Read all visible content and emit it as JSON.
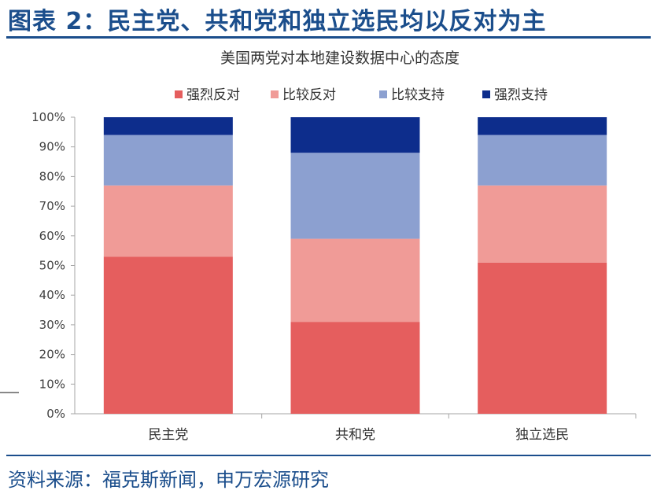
{
  "figure": {
    "heading": "图表 2：民主党、共和党和独立选民均以反对为主",
    "source": "资料来源：福克斯新闻，申万宏源研究"
  },
  "chart_data": {
    "type": "bar",
    "stacked": true,
    "title": "美国两党对本地建设数据中心的态度",
    "categories": [
      "民主党",
      "共和党",
      "独立选民"
    ],
    "series": [
      {
        "name": "强烈反对",
        "color": "#e55e5e",
        "values": [
          53,
          31,
          51
        ]
      },
      {
        "name": "比较反对",
        "color": "#f09b97",
        "values": [
          24,
          28,
          26
        ]
      },
      {
        "name": "比较支持",
        "color": "#8ca0d0",
        "values": [
          17,
          29,
          17
        ]
      },
      {
        "name": "强烈支持",
        "color": "#0d2d8c",
        "values": [
          6,
          12,
          6
        ]
      }
    ],
    "y_ticks": [
      "0%",
      "10%",
      "20%",
      "30%",
      "40%",
      "50%",
      "60%",
      "70%",
      "80%",
      "90%",
      "100%"
    ],
    "ylim": [
      0,
      100
    ],
    "legend_position": "top",
    "grid": false
  }
}
